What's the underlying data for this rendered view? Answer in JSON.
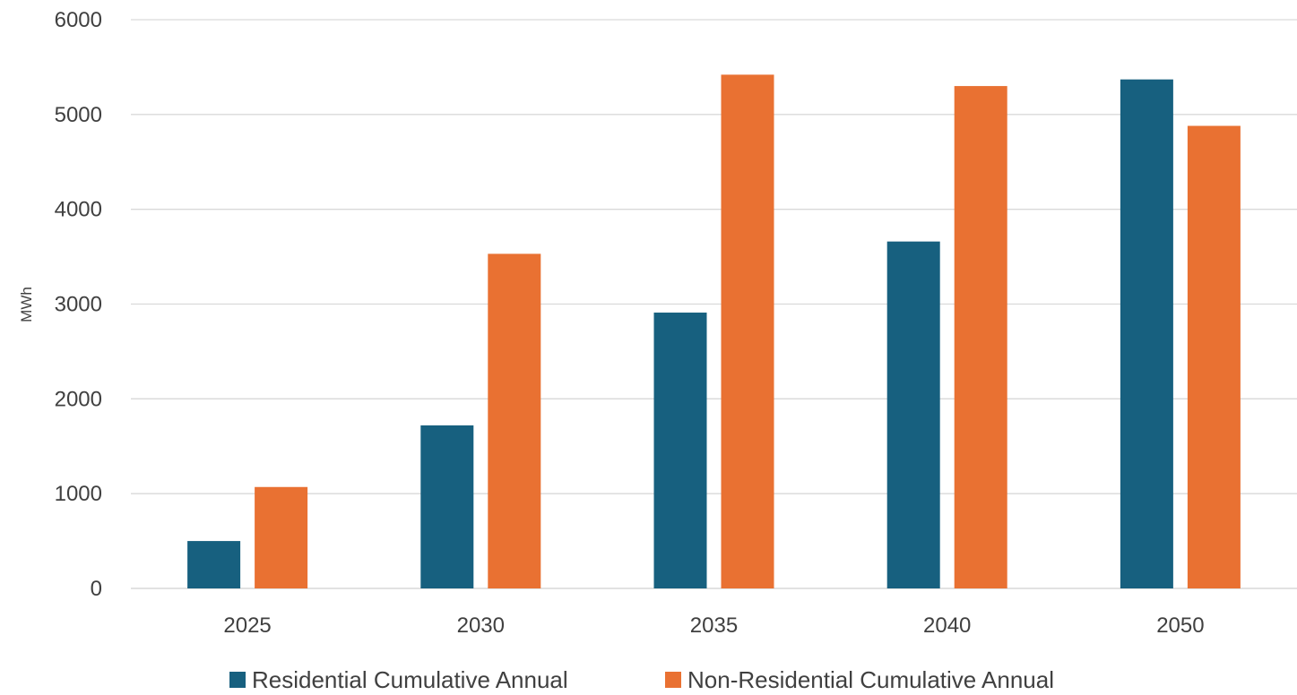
{
  "chart_data": {
    "type": "bar",
    "title": "",
    "xlabel": "",
    "ylabel": "MWh",
    "ylim": [
      0,
      6000
    ],
    "yticks": [
      0,
      1000,
      2000,
      3000,
      4000,
      5000,
      6000
    ],
    "grid": true,
    "legend_position": "bottom",
    "categories": [
      "2025",
      "2030",
      "2035",
      "2040",
      "2050"
    ],
    "series": [
      {
        "name": "Residential Cumulative Annual",
        "color": "#17607f",
        "values": [
          500,
          1720,
          2910,
          3660,
          5370
        ]
      },
      {
        "name": "Non-Residential Cumulative Annual",
        "color": "#e97132",
        "values": [
          1070,
          3530,
          5420,
          5300,
          4880
        ]
      }
    ]
  }
}
